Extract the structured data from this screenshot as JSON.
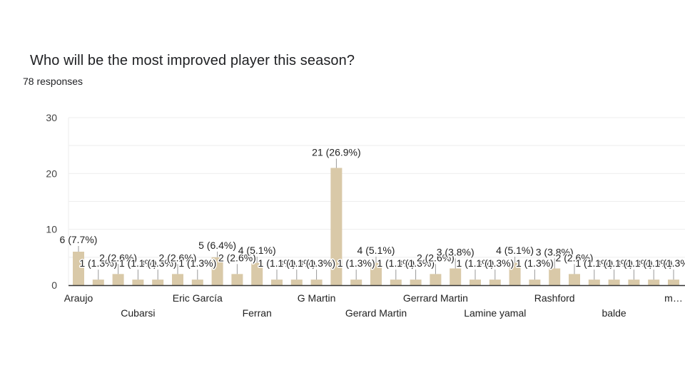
{
  "header": {
    "title": "Who will be the most improved player this season?",
    "responses": "78 responses"
  },
  "colors": {
    "bar": "#d9c9a8",
    "grid": "#eeeeee",
    "axis": "#333333",
    "leader": "#999999"
  },
  "chart_data": {
    "type": "bar",
    "title": "Who will be the most improved player this season?",
    "subtitle": "78 responses",
    "xlabel": "",
    "ylabel": "",
    "ylim": [
      0,
      30
    ],
    "yticks": [
      0,
      10,
      20,
      30
    ],
    "grid": true,
    "legend": "none",
    "x_tick_labels_visible": [
      "Araujo",
      "Cubarsi",
      "Eric García",
      "Ferran",
      "G Martin",
      "Gerard Martin",
      "Gerrard Martin",
      "Lamine yamal",
      "Rashford",
      "balde",
      "m…"
    ],
    "x_tick_label_every": 3,
    "values": [
      6,
      1,
      2,
      1,
      1,
      2,
      1,
      5,
      2,
      4,
      1,
      1,
      1,
      21,
      1,
      4,
      1,
      1,
      2,
      3,
      1,
      1,
      4,
      1,
      3,
      2,
      1,
      1,
      1,
      1,
      1
    ],
    "percent_labels": [
      "7.7%",
      "1.3%",
      "2.6%",
      "1.3%",
      "1.3%",
      "2.6%",
      "1.3%",
      "6.4%",
      "2.6%",
      "5.1%",
      "1.3%",
      "1.3%",
      "1.3%",
      "26.9%",
      "1.3%",
      "5.1%",
      "1.3%",
      "1.3%",
      "2.6%",
      "3.8%",
      "1.3%",
      "1.3%",
      "5.1%",
      "1.3%",
      "3.8%",
      "2.6%",
      "1.3%",
      "1.3%",
      "1.3%",
      "1.3%",
      "1.3%"
    ],
    "total_responses": 78
  }
}
